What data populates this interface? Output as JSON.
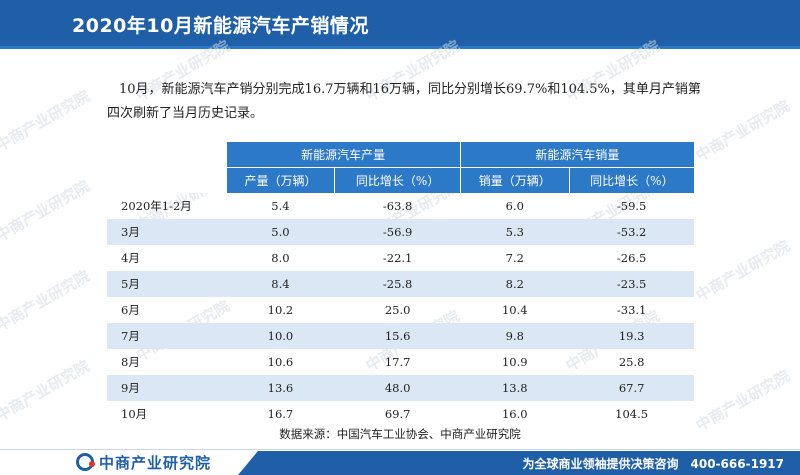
{
  "header": {
    "title": "2020年10月新能源汽车产销情况"
  },
  "intro_text": "10月，新能源汽车产销分别完成16.7万辆和16万辆，同比分别增长69.7%和104.5%，其单月产销第四次刷新了当月历史记录。",
  "table": {
    "groups": [
      "新能源汽车产量",
      "新能源汽车销量"
    ],
    "columns": [
      "产量（万辆）",
      "同比增长（%）",
      "销量（万辆）",
      "同比增长（%）"
    ],
    "rows": [
      [
        "2020年1-2月",
        "5.4",
        "-63.8",
        "6.0",
        "-59.5"
      ],
      [
        "3月",
        "5.0",
        "-56.9",
        "5.3",
        "-53.2"
      ],
      [
        "4月",
        "8.0",
        "-22.1",
        "7.2",
        "-26.5"
      ],
      [
        "5月",
        "8.4",
        "-25.8",
        "8.2",
        "-23.5"
      ],
      [
        "6月",
        "10.2",
        "25.0",
        "10.4",
        "-33.1"
      ],
      [
        "7月",
        "10.0",
        "15.6",
        "9.8",
        "19.3"
      ],
      [
        "8月",
        "10.6",
        "17.7",
        "10.9",
        "25.8"
      ],
      [
        "9月",
        "13.6",
        "48.0",
        "13.8",
        "67.7"
      ],
      [
        "10月",
        "16.7",
        "69.7",
        "16.0",
        "104.5"
      ]
    ]
  },
  "source": "数据来源：中国汽车工业协会、中商产业研究院",
  "footer": {
    "logo_text": "中商产业研究院",
    "slogan": "为全球商业领袖提供决策咨询",
    "phone": "400-666-1917"
  },
  "watermark_text": "中商产业研究院",
  "colors": {
    "header": "#1f5fa8",
    "table_header": "#2c79c7",
    "row_stripe": "#dbe7f4"
  }
}
